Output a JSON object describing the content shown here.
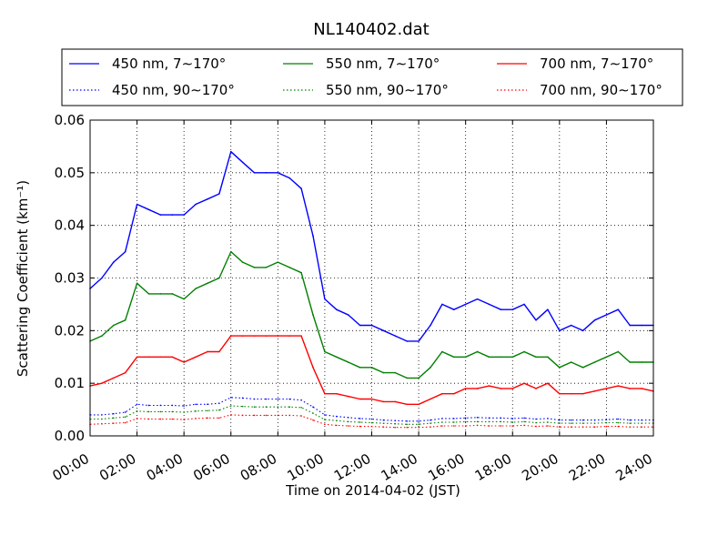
{
  "chart_data": {
    "type": "line",
    "title": "NL140402.dat",
    "xlabel": "Time on 2014-04-02 (JST)",
    "ylabel": "Scattering Coefficient (km⁻¹)",
    "xlim": [
      "00:00",
      "24:00"
    ],
    "ylim": [
      0,
      0.06
    ],
    "grid": true,
    "legend_position": "top",
    "x_ticks": [
      "00:00",
      "02:00",
      "04:00",
      "06:00",
      "08:00",
      "10:00",
      "12:00",
      "14:00",
      "16:00",
      "18:00",
      "20:00",
      "22:00",
      "24:00"
    ],
    "y_ticks": [
      "0.00",
      "0.01",
      "0.02",
      "0.03",
      "0.04",
      "0.05",
      "0.06"
    ],
    "x_hours": [
      0,
      0.5,
      1,
      1.5,
      2,
      2.5,
      3,
      3.5,
      4,
      4.5,
      5,
      5.5,
      6,
      6.5,
      7,
      7.5,
      8,
      8.5,
      9,
      9.5,
      10,
      10.5,
      11,
      11.5,
      12,
      12.5,
      13,
      13.5,
      14,
      14.5,
      15,
      15.5,
      16,
      16.5,
      17,
      17.5,
      18,
      18.5,
      19,
      19.5,
      20,
      20.5,
      21,
      21.5,
      22,
      22.5,
      23,
      23.5,
      24
    ],
    "series": [
      {
        "name": "450 nm, 7∼170°",
        "color": "#0000ff",
        "style": "solid",
        "values": [
          0.028,
          0.03,
          0.033,
          0.035,
          0.044,
          0.043,
          0.042,
          0.042,
          0.042,
          0.044,
          0.045,
          0.046,
          0.054,
          0.052,
          0.05,
          0.05,
          0.05,
          0.049,
          0.047,
          0.038,
          0.026,
          0.024,
          0.023,
          0.021,
          0.021,
          0.02,
          0.019,
          0.018,
          0.018,
          0.021,
          0.025,
          0.024,
          0.025,
          0.026,
          0.025,
          0.024,
          0.024,
          0.025,
          0.022,
          0.024,
          0.02,
          0.021,
          0.02,
          0.022,
          0.023,
          0.024,
          0.021,
          0.021,
          0.021
        ]
      },
      {
        "name": "550 nm, 7∼170°",
        "color": "#008000",
        "style": "solid",
        "values": [
          0.018,
          0.019,
          0.021,
          0.022,
          0.029,
          0.027,
          0.027,
          0.027,
          0.026,
          0.028,
          0.029,
          0.03,
          0.035,
          0.033,
          0.032,
          0.032,
          0.033,
          0.032,
          0.031,
          0.023,
          0.016,
          0.015,
          0.014,
          0.013,
          0.013,
          0.012,
          0.012,
          0.011,
          0.011,
          0.013,
          0.016,
          0.015,
          0.015,
          0.016,
          0.015,
          0.015,
          0.015,
          0.016,
          0.015,
          0.015,
          0.013,
          0.014,
          0.013,
          0.014,
          0.015,
          0.016,
          0.014,
          0.014,
          0.014
        ]
      },
      {
        "name": "700 nm, 7∼170°",
        "color": "#ff0000",
        "style": "solid",
        "values": [
          0.0095,
          0.01,
          0.011,
          0.012,
          0.015,
          0.015,
          0.015,
          0.015,
          0.014,
          0.015,
          0.016,
          0.016,
          0.019,
          0.019,
          0.019,
          0.019,
          0.019,
          0.019,
          0.019,
          0.013,
          0.008,
          0.008,
          0.0075,
          0.007,
          0.007,
          0.0065,
          0.0065,
          0.006,
          0.006,
          0.007,
          0.008,
          0.008,
          0.009,
          0.009,
          0.0095,
          0.009,
          0.009,
          0.01,
          0.009,
          0.01,
          0.008,
          0.008,
          0.008,
          0.0085,
          0.009,
          0.0095,
          0.009,
          0.009,
          0.0085
        ]
      },
      {
        "name": "450 nm, 90∼170°",
        "color": "#0000ff",
        "style": "dotted",
        "values": [
          0.004,
          0.004,
          0.0042,
          0.0045,
          0.006,
          0.0058,
          0.0058,
          0.0058,
          0.0057,
          0.006,
          0.006,
          0.0062,
          0.0073,
          0.0072,
          0.007,
          0.007,
          0.007,
          0.007,
          0.0068,
          0.0055,
          0.004,
          0.0037,
          0.0035,
          0.0033,
          0.0032,
          0.003,
          0.0029,
          0.0028,
          0.0028,
          0.003,
          0.0033,
          0.0033,
          0.0034,
          0.0035,
          0.0034,
          0.0034,
          0.0033,
          0.0034,
          0.0032,
          0.0033,
          0.003,
          0.003,
          0.003,
          0.003,
          0.0031,
          0.0032,
          0.003,
          0.003,
          0.003
        ]
      },
      {
        "name": "550 nm, 90∼170°",
        "color": "#008000",
        "style": "dotted",
        "values": [
          0.0032,
          0.0032,
          0.0034,
          0.0036,
          0.0047,
          0.0046,
          0.0046,
          0.0046,
          0.0045,
          0.0047,
          0.0048,
          0.0049,
          0.0057,
          0.0056,
          0.0055,
          0.0055,
          0.0055,
          0.0055,
          0.0054,
          0.0043,
          0.0031,
          0.0029,
          0.0027,
          0.0026,
          0.0025,
          0.0024,
          0.0023,
          0.0022,
          0.0022,
          0.0024,
          0.0026,
          0.0026,
          0.0027,
          0.0027,
          0.0027,
          0.0027,
          0.0026,
          0.0027,
          0.0025,
          0.0026,
          0.0024,
          0.0024,
          0.0024,
          0.0024,
          0.0025,
          0.0025,
          0.0024,
          0.0024,
          0.0024
        ]
      },
      {
        "name": "700 nm, 90∼170°",
        "color": "#ff0000",
        "style": "dotted",
        "values": [
          0.0022,
          0.0023,
          0.0024,
          0.0025,
          0.0033,
          0.0032,
          0.0032,
          0.0032,
          0.0031,
          0.0033,
          0.0034,
          0.0034,
          0.004,
          0.0039,
          0.0039,
          0.0039,
          0.0039,
          0.0039,
          0.0038,
          0.003,
          0.0022,
          0.002,
          0.0019,
          0.0018,
          0.0018,
          0.0017,
          0.0016,
          0.0016,
          0.0016,
          0.0017,
          0.0019,
          0.0019,
          0.0019,
          0.002,
          0.0019,
          0.0019,
          0.0019,
          0.002,
          0.0018,
          0.0019,
          0.0017,
          0.0017,
          0.0017,
          0.0017,
          0.0018,
          0.0018,
          0.0017,
          0.0017,
          0.0017
        ]
      }
    ],
    "legend_order": [
      0,
      1,
      2,
      3,
      4,
      5
    ]
  }
}
